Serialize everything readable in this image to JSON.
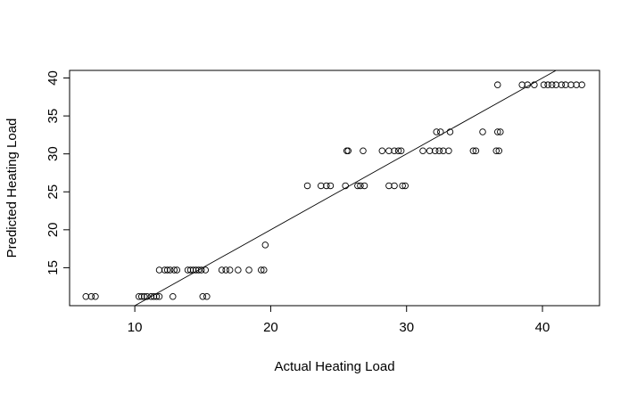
{
  "chart_data": {
    "type": "scatter",
    "title": "",
    "xlabel": "Actual Heating Load",
    "ylabel": "Predicted Heating Load",
    "xlim": [
      5.2,
      44.2
    ],
    "ylim": [
      10.0,
      41.0
    ],
    "xticks": [
      10,
      20,
      30,
      40
    ],
    "yticks": [
      15,
      20,
      25,
      30,
      35,
      40
    ],
    "xtick_labels": [
      "10",
      "20",
      "30",
      "40"
    ],
    "ytick_labels": [
      "15",
      "20",
      "25",
      "30",
      "35",
      "40"
    ],
    "grid": false,
    "legend": "none",
    "marker": "open-circle",
    "reference_line": {
      "slope": 1,
      "intercept": 0
    },
    "points": [
      [
        6.4,
        11.2
      ],
      [
        6.8,
        11.2
      ],
      [
        7.1,
        11.2
      ],
      [
        10.3,
        11.2
      ],
      [
        10.5,
        11.2
      ],
      [
        10.7,
        11.2
      ],
      [
        10.9,
        11.2
      ],
      [
        11.2,
        11.2
      ],
      [
        11.4,
        11.2
      ],
      [
        11.6,
        11.2
      ],
      [
        11.8,
        11.2
      ],
      [
        12.8,
        11.2
      ],
      [
        15.0,
        11.2
      ],
      [
        15.3,
        11.2
      ],
      [
        11.8,
        14.7
      ],
      [
        12.2,
        14.7
      ],
      [
        12.4,
        14.7
      ],
      [
        12.6,
        14.7
      ],
      [
        12.9,
        14.7
      ],
      [
        13.1,
        14.7
      ],
      [
        13.9,
        14.7
      ],
      [
        14.1,
        14.7
      ],
      [
        14.3,
        14.7
      ],
      [
        14.5,
        14.7
      ],
      [
        14.7,
        14.7
      ],
      [
        14.9,
        14.7
      ],
      [
        15.2,
        14.7
      ],
      [
        16.4,
        14.7
      ],
      [
        16.7,
        14.7
      ],
      [
        17.0,
        14.7
      ],
      [
        17.6,
        14.7
      ],
      [
        18.4,
        14.7
      ],
      [
        19.3,
        14.7
      ],
      [
        19.5,
        14.7
      ],
      [
        19.6,
        18.0
      ],
      [
        22.7,
        25.8
      ],
      [
        23.7,
        25.8
      ],
      [
        24.1,
        25.8
      ],
      [
        24.4,
        25.8
      ],
      [
        25.5,
        25.8
      ],
      [
        26.4,
        25.8
      ],
      [
        26.6,
        25.8
      ],
      [
        26.9,
        25.8
      ],
      [
        28.7,
        25.8
      ],
      [
        29.1,
        25.8
      ],
      [
        29.7,
        25.8
      ],
      [
        29.9,
        25.8
      ],
      [
        25.6,
        30.4
      ],
      [
        25.7,
        30.4
      ],
      [
        26.8,
        30.4
      ],
      [
        28.2,
        30.4
      ],
      [
        28.7,
        30.4
      ],
      [
        29.1,
        30.4
      ],
      [
        29.4,
        30.4
      ],
      [
        29.6,
        30.4
      ],
      [
        31.2,
        30.4
      ],
      [
        31.7,
        30.4
      ],
      [
        32.1,
        30.4
      ],
      [
        32.4,
        30.4
      ],
      [
        32.7,
        30.4
      ],
      [
        33.1,
        30.4
      ],
      [
        34.9,
        30.4
      ],
      [
        35.1,
        30.4
      ],
      [
        36.6,
        30.4
      ],
      [
        36.8,
        30.4
      ],
      [
        32.2,
        32.9
      ],
      [
        32.5,
        32.9
      ],
      [
        33.2,
        32.9
      ],
      [
        35.6,
        32.9
      ],
      [
        36.7,
        32.9
      ],
      [
        36.9,
        32.9
      ],
      [
        36.7,
        39.1
      ],
      [
        38.5,
        39.1
      ],
      [
        38.9,
        39.1
      ],
      [
        39.4,
        39.1
      ],
      [
        40.1,
        39.1
      ],
      [
        40.4,
        39.1
      ],
      [
        40.7,
        39.1
      ],
      [
        41.0,
        39.1
      ],
      [
        41.4,
        39.1
      ],
      [
        41.7,
        39.1
      ],
      [
        42.1,
        39.1
      ],
      [
        42.5,
        39.1
      ],
      [
        42.9,
        39.1
      ]
    ]
  }
}
